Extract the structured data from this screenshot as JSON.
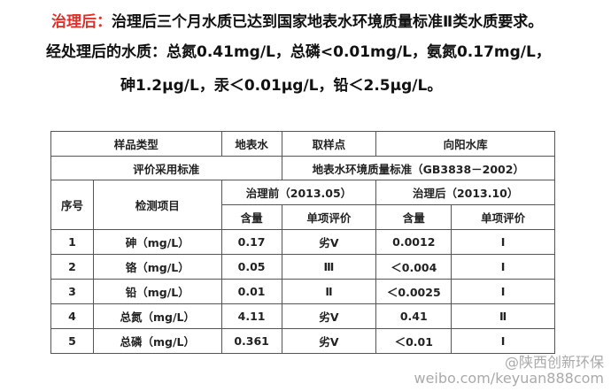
{
  "header": {
    "label": "治理后：",
    "text": "治理后三个月水质已达到国家地表水环境质量标准Ⅱ类水质要求。"
  },
  "summary": {
    "line1": "经处理后的水质：总氮0.41mg/L，总磷<0.01mg/L，氨氮0.17mg/L，",
    "line2": "砷1.2μg/L，汞＜0.01μg/L，铅＜2.5μg/L。"
  },
  "table": {
    "info": [
      [
        "样品类型",
        "地表水",
        "取样点",
        "向阳水库"
      ],
      [
        "评价采用标准",
        "地表水环境质量标准（GB3838－2002）"
      ]
    ],
    "headers": {
      "no": "序号",
      "item": "检测项目",
      "before": "治理前（2013.05）",
      "after": "治理后（2013.10）",
      "sub": [
        "含量",
        "单项评价",
        "含量",
        "单项评价"
      ]
    },
    "rows": [
      [
        "1",
        "砷（mg/L）",
        "0.17",
        "劣Ⅴ",
        "0.0012",
        "Ⅰ"
      ],
      [
        "2",
        "铬（mg/L）",
        "0.05",
        "Ⅲ",
        "＜0.004",
        "Ⅰ"
      ],
      [
        "3",
        "铅（mg/L）",
        "0.01",
        "Ⅱ",
        "＜0.0025",
        "Ⅰ"
      ],
      [
        "4",
        "总氮（mg/L）",
        "4.11",
        "劣Ⅴ",
        "0.41",
        "Ⅱ"
      ],
      [
        "5",
        "总磷（mg/L）",
        "0.361",
        "劣Ⅴ",
        "＜0.01",
        "Ⅰ"
      ]
    ]
  },
  "watermark": {
    "handle": "@陕西创新环保",
    "url": "weibo.com/keyuan888com"
  }
}
